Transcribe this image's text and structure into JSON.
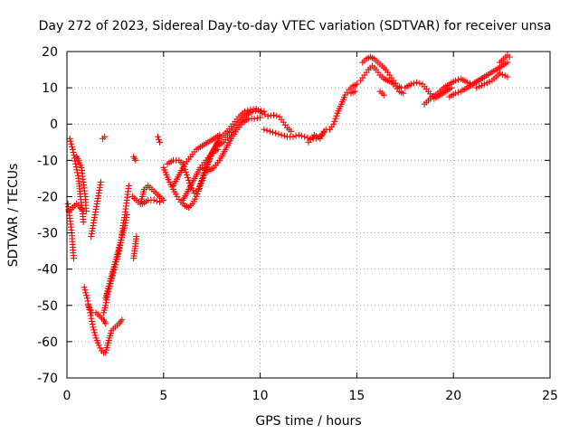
{
  "chart_data": {
    "type": "scatter",
    "title": "Day 272 of 2023, Sidereal Day-to-day VTEC variation (SDTVAR) for receiver unsa",
    "xlabel": "GPS time / hours",
    "ylabel": "SDTVAR / TECUs",
    "xlim": [
      0,
      25
    ],
    "ylim": [
      -70,
      20
    ],
    "xticks": [
      0,
      5,
      10,
      15,
      20,
      25
    ],
    "yticks": [
      -70,
      -60,
      -50,
      -40,
      -30,
      -20,
      -10,
      0,
      10,
      20
    ],
    "grid": true,
    "marker": "+",
    "series": [
      {
        "name": "SDTVAR",
        "color": "#ff0000",
        "tracks": [
          [
            [
              0.05,
              -22
            ],
            [
              0.15,
              -26
            ],
            [
              0.25,
              -30
            ],
            [
              0.3,
              -34
            ],
            [
              0.35,
              -37
            ]
          ],
          [
            [
              0.1,
              -24
            ],
            [
              0.3,
              -23
            ],
            [
              0.5,
              -22
            ],
            [
              0.7,
              -23
            ],
            [
              0.85,
              -24
            ]
          ],
          [
            [
              0.15,
              -4
            ],
            [
              0.3,
              -7
            ],
            [
              0.45,
              -11
            ],
            [
              0.6,
              -15
            ],
            [
              0.7,
              -20
            ],
            [
              0.8,
              -24
            ],
            [
              0.85,
              -27
            ]
          ],
          [
            [
              0.5,
              -9
            ],
            [
              0.6,
              -10
            ],
            [
              0.75,
              -12
            ],
            [
              0.85,
              -16
            ],
            [
              0.95,
              -20
            ],
            [
              1.0,
              -24
            ]
          ],
          [
            [
              0.9,
              -45
            ],
            [
              1.05,
              -48
            ],
            [
              1.2,
              -52
            ],
            [
              1.35,
              -56
            ],
            [
              1.5,
              -59
            ],
            [
              1.65,
              -61
            ],
            [
              1.8,
              -62.5
            ],
            [
              1.9,
              -63
            ],
            [
              2.0,
              -63
            ],
            [
              2.1,
              -61
            ],
            [
              2.2,
              -59
            ],
            [
              2.3,
              -57
            ],
            [
              2.5,
              -56
            ],
            [
              2.7,
              -55
            ],
            [
              2.85,
              -54
            ]
          ],
          [
            [
              1.1,
              -50
            ],
            [
              1.3,
              -52
            ],
            [
              1.5,
              -52
            ],
            [
              1.7,
              -53
            ],
            [
              1.9,
              -54
            ],
            [
              2.0,
              -55
            ]
          ],
          [
            [
              1.25,
              -31
            ],
            [
              1.35,
              -28
            ],
            [
              1.45,
              -25
            ],
            [
              1.55,
              -22
            ],
            [
              1.65,
              -19
            ],
            [
              1.75,
              -16
            ]
          ],
          [
            [
              1.85,
              -4
            ],
            [
              1.95,
              -3.5
            ]
          ],
          [
            [
              1.9,
              -52
            ],
            [
              2.0,
              -50
            ],
            [
              2.1,
              -47
            ],
            [
              2.25,
              -44
            ],
            [
              2.4,
              -41
            ],
            [
              2.55,
              -38
            ],
            [
              2.7,
              -35
            ],
            [
              2.8,
              -32
            ],
            [
              2.9,
              -28
            ],
            [
              3.0,
              -25
            ],
            [
              3.1,
              -21
            ],
            [
              3.2,
              -17
            ]
          ],
          [
            [
              2.0,
              -48
            ],
            [
              2.2,
              -44
            ],
            [
              2.4,
              -40
            ],
            [
              2.6,
              -36
            ],
            [
              2.8,
              -32
            ],
            [
              3.0,
              -28
            ],
            [
              3.1,
              -25
            ]
          ],
          [
            [
              3.45,
              -37
            ],
            [
              3.5,
              -35
            ],
            [
              3.55,
              -33
            ],
            [
              3.6,
              -31
            ]
          ],
          [
            [
              3.45,
              -9
            ],
            [
              3.55,
              -10
            ]
          ],
          [
            [
              3.4,
              -20
            ],
            [
              3.6,
              -21
            ],
            [
              3.8,
              -22
            ],
            [
              3.9,
              -20
            ],
            [
              4.0,
              -18
            ],
            [
              4.2,
              -17
            ],
            [
              4.4,
              -18
            ],
            [
              4.6,
              -19
            ],
            [
              4.8,
              -20
            ],
            [
              5.0,
              -21
            ]
          ],
          [
            [
              3.9,
              -22
            ],
            [
              4.2,
              -21
            ],
            [
              4.5,
              -21
            ],
            [
              4.8,
              -21.5
            ]
          ],
          [
            [
              4.7,
              -3.5
            ],
            [
              4.8,
              -5
            ]
          ],
          [
            [
              5.0,
              -12
            ],
            [
              5.15,
              -14
            ],
            [
              5.3,
              -16
            ],
            [
              5.5,
              -18
            ],
            [
              5.7,
              -20
            ],
            [
              5.9,
              -21.5
            ],
            [
              6.1,
              -22.5
            ],
            [
              6.3,
              -23
            ],
            [
              6.5,
              -22
            ],
            [
              6.7,
              -20
            ],
            [
              6.9,
              -17
            ],
            [
              7.1,
              -14
            ],
            [
              7.3,
              -11
            ],
            [
              7.5,
              -8
            ],
            [
              7.7,
              -6
            ],
            [
              7.9,
              -4
            ],
            [
              8.1,
              -3
            ],
            [
              8.3,
              -2
            ]
          ],
          [
            [
              5.2,
              -11
            ],
            [
              5.5,
              -10
            ],
            [
              5.8,
              -10
            ],
            [
              6.0,
              -11
            ],
            [
              6.2,
              -14
            ],
            [
              6.4,
              -17
            ],
            [
              6.6,
              -19
            ],
            [
              6.8,
              -18
            ],
            [
              7.0,
              -15
            ],
            [
              7.2,
              -12
            ],
            [
              7.4,
              -9
            ],
            [
              7.6,
              -7
            ],
            [
              7.8,
              -5
            ]
          ],
          [
            [
              5.5,
              -17
            ],
            [
              5.8,
              -14
            ],
            [
              6.1,
              -11
            ],
            [
              6.4,
              -9
            ],
            [
              6.7,
              -7
            ],
            [
              7.0,
              -6
            ],
            [
              7.3,
              -5
            ],
            [
              7.6,
              -4
            ],
            [
              7.9,
              -3
            ]
          ],
          [
            [
              6.0,
              -21
            ],
            [
              6.3,
              -18
            ],
            [
              6.6,
              -15
            ],
            [
              6.9,
              -12
            ],
            [
              7.2,
              -10
            ],
            [
              7.5,
              -8
            ],
            [
              7.8,
              -7
            ]
          ],
          [
            [
              7.0,
              -12
            ],
            [
              7.3,
              -13
            ],
            [
              7.6,
              -12
            ],
            [
              7.9,
              -10
            ],
            [
              8.2,
              -7
            ],
            [
              8.5,
              -4
            ],
            [
              8.8,
              -1.5
            ],
            [
              9.1,
              0.5
            ],
            [
              9.4,
              1.5
            ],
            [
              9.7,
              1.5
            ],
            [
              10.0,
              1.8
            ]
          ],
          [
            [
              7.8,
              -6
            ],
            [
              8.1,
              -5
            ],
            [
              8.4,
              -3
            ],
            [
              8.7,
              -1
            ],
            [
              9.0,
              1
            ],
            [
              9.3,
              2.5
            ],
            [
              9.6,
              3.5
            ],
            [
              9.9,
              3.8
            ],
            [
              10.2,
              3.5
            ]
          ],
          [
            [
              8.3,
              -2
            ],
            [
              8.6,
              0
            ],
            [
              8.9,
              2
            ],
            [
              9.2,
              3.5
            ],
            [
              9.5,
              4
            ],
            [
              9.8,
              4.2
            ],
            [
              10.1,
              3
            ],
            [
              10.4,
              2.2
            ],
            [
              10.7,
              2.5
            ],
            [
              11.0,
              2
            ],
            [
              11.2,
              0.5
            ],
            [
              11.4,
              -1
            ],
            [
              11.6,
              -2
            ]
          ],
          [
            [
              10.2,
              -1.5
            ],
            [
              10.5,
              -2
            ],
            [
              10.8,
              -2.5
            ],
            [
              11.1,
              -3
            ],
            [
              11.4,
              -3.5
            ],
            [
              11.7,
              -3.5
            ],
            [
              12.0,
              -3
            ],
            [
              12.3,
              -3.5
            ],
            [
              12.6,
              -4
            ],
            [
              12.9,
              -4
            ],
            [
              13.2,
              -3
            ],
            [
              13.4,
              -1.5
            ]
          ],
          [
            [
              12.5,
              -5
            ],
            [
              12.8,
              -3
            ],
            [
              13.1,
              -4
            ],
            [
              13.3,
              -2
            ]
          ],
          [
            [
              13.6,
              -1.5
            ],
            [
              13.8,
              0
            ],
            [
              14.0,
              3
            ],
            [
              14.2,
              5.5
            ],
            [
              14.4,
              8
            ],
            [
              14.6,
              9.5
            ],
            [
              14.8,
              10.5
            ],
            [
              15.0,
              11
            ]
          ],
          [
            [
              14.7,
              8.5
            ],
            [
              14.9,
              9
            ]
          ],
          [
            [
              15.2,
              12
            ],
            [
              15.4,
              13.5
            ],
            [
              15.6,
              15
            ],
            [
              15.8,
              16
            ],
            [
              16.0,
              15
            ],
            [
              16.2,
              13.5
            ],
            [
              16.4,
              12.5
            ],
            [
              16.6,
              12
            ],
            [
              16.8,
              11.5
            ],
            [
              17.0,
              10.5
            ],
            [
              17.2,
              9
            ],
            [
              17.4,
              8.5
            ]
          ],
          [
            [
              15.3,
              17
            ],
            [
              15.5,
              18
            ],
            [
              15.7,
              18.5
            ],
            [
              15.9,
              18
            ],
            [
              16.1,
              17
            ],
            [
              16.3,
              16
            ],
            [
              16.5,
              15
            ],
            [
              16.7,
              13.5
            ],
            [
              16.9,
              12
            ],
            [
              17.1,
              10.5
            ],
            [
              17.3,
              10
            ]
          ],
          [
            [
              16.2,
              9
            ],
            [
              16.4,
              8
            ]
          ],
          [
            [
              17.5,
              10
            ],
            [
              17.8,
              11
            ],
            [
              18.1,
              11.5
            ],
            [
              18.4,
              11
            ],
            [
              18.7,
              9
            ],
            [
              19.0,
              7
            ],
            [
              19.3,
              8
            ],
            [
              19.6,
              9
            ],
            [
              19.9,
              10
            ]
          ],
          [
            [
              18.5,
              5.5
            ],
            [
              18.7,
              6.5
            ],
            [
              18.9,
              7.5
            ],
            [
              19.2,
              8.5
            ],
            [
              19.5,
              10
            ],
            [
              19.8,
              11
            ],
            [
              20.1,
              12
            ],
            [
              20.4,
              12.5
            ],
            [
              20.7,
              11.5
            ],
            [
              21.0,
              11
            ],
            [
              21.3,
              12
            ],
            [
              21.6,
              13
            ]
          ],
          [
            [
              19.8,
              7.5
            ],
            [
              20.1,
              8.5
            ],
            [
              20.4,
              9
            ],
            [
              20.7,
              10
            ],
            [
              21.0,
              11
            ],
            [
              21.3,
              12
            ],
            [
              21.6,
              13
            ],
            [
              21.9,
              14
            ],
            [
              22.2,
              15
            ],
            [
              22.5,
              16
            ],
            [
              22.8,
              17
            ]
          ],
          [
            [
              21.2,
              10
            ],
            [
              21.6,
              11
            ],
            [
              22.0,
              12
            ],
            [
              22.4,
              14
            ],
            [
              22.8,
              13
            ]
          ],
          [
            [
              22.4,
              17
            ],
            [
              22.6,
              18
            ],
            [
              22.8,
              19
            ],
            [
              22.9,
              18.5
            ]
          ]
        ]
      }
    ]
  }
}
